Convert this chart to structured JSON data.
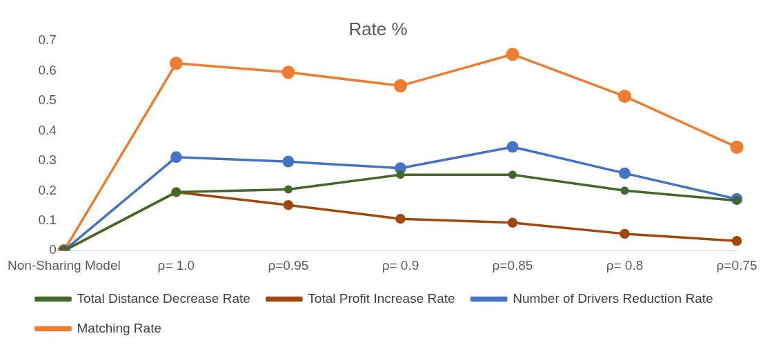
{
  "chart_data": {
    "type": "line",
    "title": "Rate %",
    "categories": [
      "Non-Sharing Model",
      "ρ= 1.0",
      "ρ=0.95",
      "ρ= 0.9",
      "ρ=0.85",
      "ρ= 0.8",
      "ρ=0.75"
    ],
    "series": [
      {
        "name": "Matching Rate",
        "color": "#ed7d31",
        "values": [
          0,
          0.625,
          0.595,
          0.55,
          0.655,
          0.515,
          0.345
        ]
      },
      {
        "name": "Number of Drivers Reduction Rate",
        "color": "#4472c4",
        "values": [
          0,
          0.312,
          0.297,
          0.275,
          0.346,
          0.258,
          0.172
        ]
      },
      {
        "name": "Total Profit Increase Rate",
        "color": "#9e480e",
        "values": [
          0,
          0.195,
          0.152,
          0.106,
          0.093,
          0.056,
          0.032
        ]
      },
      {
        "name": "Total Distance Decrease Rate",
        "color": "#43682b",
        "values": [
          0,
          0.195,
          0.204,
          0.253,
          0.253,
          0.2,
          0.167
        ]
      }
    ],
    "ylim": [
      0,
      0.7
    ],
    "yticks": [
      0,
      0.1,
      0.2,
      0.3,
      0.4,
      0.5,
      0.6,
      0.7
    ],
    "grid": false,
    "legend": "bottom",
    "marker": "circle",
    "line_style": "solid"
  }
}
